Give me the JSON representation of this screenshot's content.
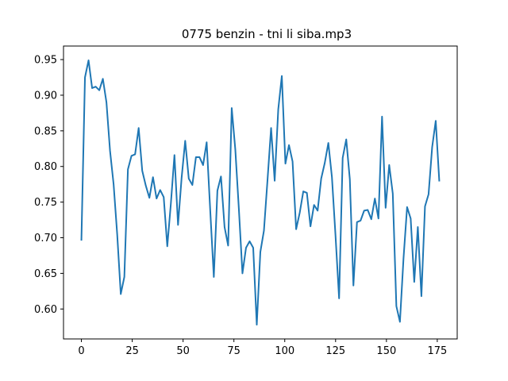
{
  "chart_data": {
    "type": "line",
    "title": "0775 benzin - tni li siba.mp3",
    "xlabel": "",
    "ylabel": "",
    "xlim": [
      -8.8,
      184.8
    ],
    "ylim": [
      0.558,
      0.969
    ],
    "xticks": [
      0,
      25,
      50,
      75,
      100,
      125,
      150,
      175
    ],
    "yticks": [
      0.6,
      0.65,
      0.7,
      0.75,
      0.8,
      0.85,
      0.9,
      0.95
    ],
    "xtick_labels": [
      "0",
      "25",
      "50",
      "75",
      "100",
      "125",
      "150",
      "175"
    ],
    "ytick_labels": [
      "0.60",
      "0.65",
      "0.70",
      "0.75",
      "0.80",
      "0.85",
      "0.90",
      "0.95"
    ],
    "grid": false,
    "line_color": "#1f77b4",
    "series": [
      {
        "x": [
          0,
          1.76,
          3.52,
          5.28,
          7.04,
          8.8,
          10.56,
          12.32,
          14.08,
          15.84,
          17.6,
          19.36,
          21.12,
          22.88,
          24.64,
          26.4,
          28.16,
          29.92,
          31.68,
          33.44,
          35.2,
          36.96,
          38.72,
          40.48,
          42.24,
          44,
          45.76,
          47.52,
          49.28,
          51.04,
          52.8,
          54.56,
          56.32,
          58.08,
          59.84,
          61.6,
          63.36,
          65.12,
          66.88,
          68.64,
          70.4,
          72.16,
          73.92,
          75.68,
          77.44,
          79.2,
          80.96,
          82.72,
          84.48,
          86.24,
          88,
          89.76,
          91.52,
          93.28,
          95.04,
          96.8,
          98.56,
          100.32,
          102.08,
          103.84,
          105.6,
          107.36,
          109.12,
          110.88,
          112.64,
          114.4,
          116.16,
          117.92,
          119.68,
          121.44,
          123.2,
          124.96,
          126.72,
          128.48,
          130.24,
          132,
          133.76,
          135.52,
          137.28,
          139.04,
          140.8,
          142.56,
          144.32,
          146.08,
          147.84,
          149.6,
          151.36,
          153.12,
          154.88,
          156.64,
          158.4,
          160.16,
          161.92,
          163.68,
          165.44,
          167.2,
          168.96,
          170.72,
          172.48,
          174.24,
          176
        ],
        "y": [
          0.696,
          0.925,
          0.949,
          0.91,
          0.912,
          0.907,
          0.923,
          0.89,
          0.822,
          0.775,
          0.705,
          0.621,
          0.645,
          0.796,
          0.815,
          0.817,
          0.854,
          0.794,
          0.773,
          0.756,
          0.785,
          0.755,
          0.767,
          0.757,
          0.688,
          0.748,
          0.816,
          0.718,
          0.784,
          0.836,
          0.783,
          0.774,
          0.813,
          0.813,
          0.802,
          0.834,
          0.738,
          0.645,
          0.766,
          0.786,
          0.715,
          0.689,
          0.882,
          0.824,
          0.74,
          0.65,
          0.686,
          0.695,
          0.686,
          0.578,
          0.68,
          0.71,
          0.781,
          0.854,
          0.78,
          0.88,
          0.927,
          0.804,
          0.83,
          0.807,
          0.712,
          0.735,
          0.765,
          0.763,
          0.716,
          0.746,
          0.738,
          0.783,
          0.805,
          0.833,
          0.785,
          0.703,
          0.615,
          0.812,
          0.838,
          0.782,
          0.633,
          0.722,
          0.724,
          0.738,
          0.739,
          0.726,
          0.755,
          0.727,
          0.87,
          0.742,
          0.802,
          0.762,
          0.604,
          0.582,
          0.671,
          0.743,
          0.727,
          0.638,
          0.715,
          0.618,
          0.744,
          0.761,
          0.827,
          0.864,
          0.779
        ]
      }
    ]
  }
}
